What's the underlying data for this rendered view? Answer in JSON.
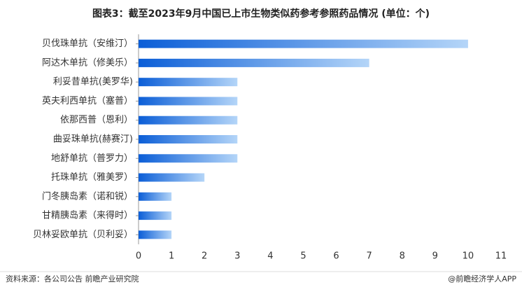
{
  "chart_data": {
    "type": "bar",
    "orientation": "horizontal",
    "title": "图表3：截至2023年9月中国已上市生物类似药参考参照药品情况 (单位：个)",
    "categories": [
      "贝伐珠单抗（安维汀）",
      "阿达木单抗（修美乐）",
      "利妥昔单抗(美罗华)",
      "英夫利西单抗（塞普）",
      "依那西普（恩利）",
      "曲妥珠单抗(赫赛汀)",
      "地舒单抗（普罗力）",
      "托珠单抗（雅美罗）",
      "门冬胰岛素（诺和锐）",
      "甘精胰岛素（来得时）",
      "贝林妥欧单抗（贝利妥）"
    ],
    "values": [
      10,
      7,
      3,
      3,
      3,
      3,
      3,
      2,
      1,
      1,
      1
    ],
    "gradient": [
      "#0b5ed7",
      "#b4d5f8"
    ],
    "xlim": [
      0,
      11
    ],
    "xticks": [
      0,
      1,
      2,
      3,
      4,
      5,
      6,
      7,
      8,
      9,
      10,
      11
    ],
    "source": "资料来源：各公司公告 前瞻产业研究院",
    "brand": "@前瞻经济学人APP"
  }
}
